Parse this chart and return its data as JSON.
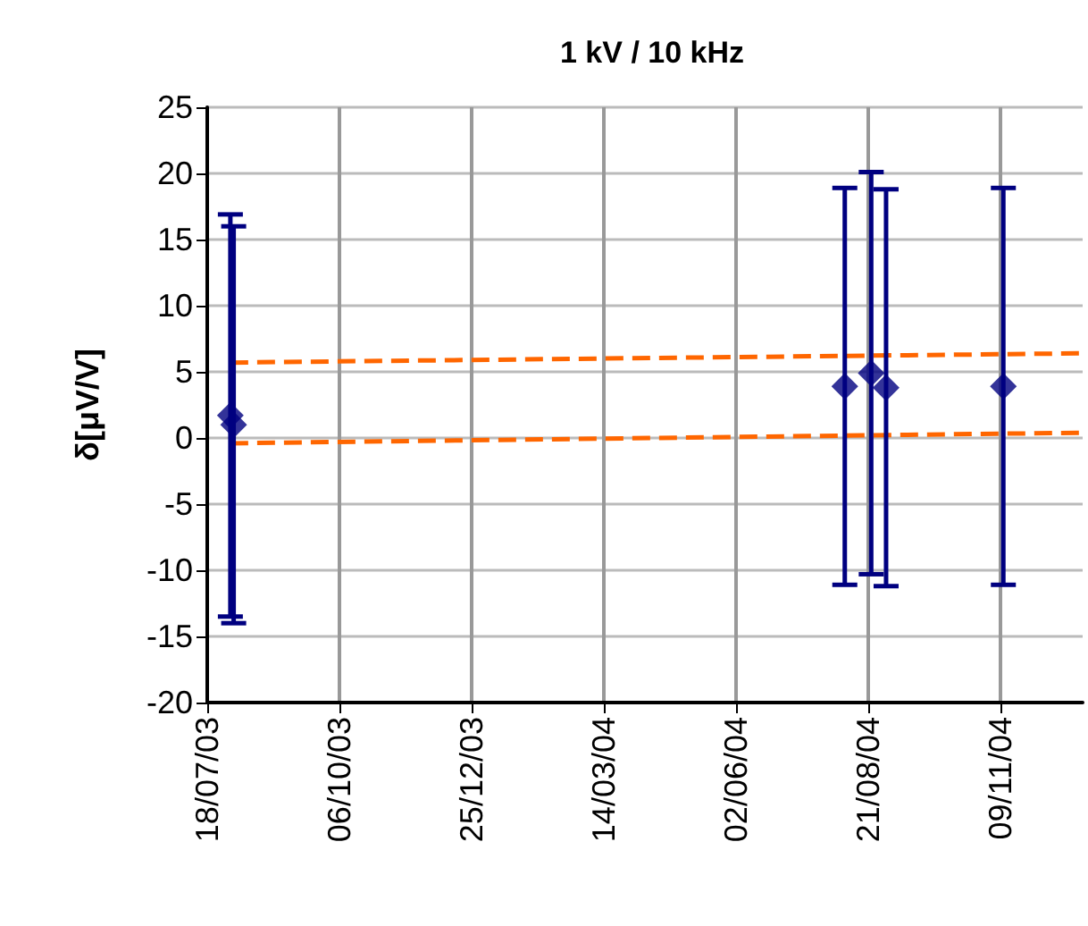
{
  "chart_data": {
    "type": "scatter",
    "title": "1 kV / 10 kHz",
    "ylabel": "δ[μV/V]",
    "xlim": [
      "2003-07-18",
      "2004-12-29"
    ],
    "xticks": [
      {
        "value": "2003-07-18",
        "label": "18/07/03"
      },
      {
        "value": "2003-10-06",
        "label": "06/10/03"
      },
      {
        "value": "2003-12-25",
        "label": "25/12/03"
      },
      {
        "value": "2004-03-14",
        "label": "14/03/04"
      },
      {
        "value": "2004-06-02",
        "label": "02/06/04"
      },
      {
        "value": "2004-08-21",
        "label": "21/08/04"
      },
      {
        "value": "2004-11-09",
        "label": "09/11/04"
      }
    ],
    "ylim": [
      -20,
      25
    ],
    "yticks": [
      -20,
      -15,
      -10,
      -5,
      0,
      5,
      10,
      15,
      20,
      25
    ],
    "grid": true,
    "marker": "diamond",
    "series": [
      {
        "type": "scatter",
        "color": "#000080",
        "x": [
          "2003-08-01",
          "2003-08-03",
          "2004-08-07",
          "2004-08-23",
          "2004-09-01",
          "2004-11-11"
        ],
        "values": [
          1.7,
          1.0,
          3.9,
          4.9,
          3.8,
          3.9
        ],
        "errors": [
          15.2,
          15,
          15,
          15.2,
          15,
          15
        ]
      },
      {
        "type": "line",
        "color": "#ff6600",
        "line_style": "dashed",
        "marker": "none",
        "x": [
          "2003-08-01",
          "2004-12-29"
        ],
        "values": [
          5.7,
          6.4
        ]
      },
      {
        "type": "line",
        "color": "#ff6600",
        "line_style": "dashed",
        "marker": "none",
        "x": [
          "2003-08-01",
          "2004-12-29"
        ],
        "values": [
          -0.4,
          0.4
        ]
      }
    ]
  }
}
